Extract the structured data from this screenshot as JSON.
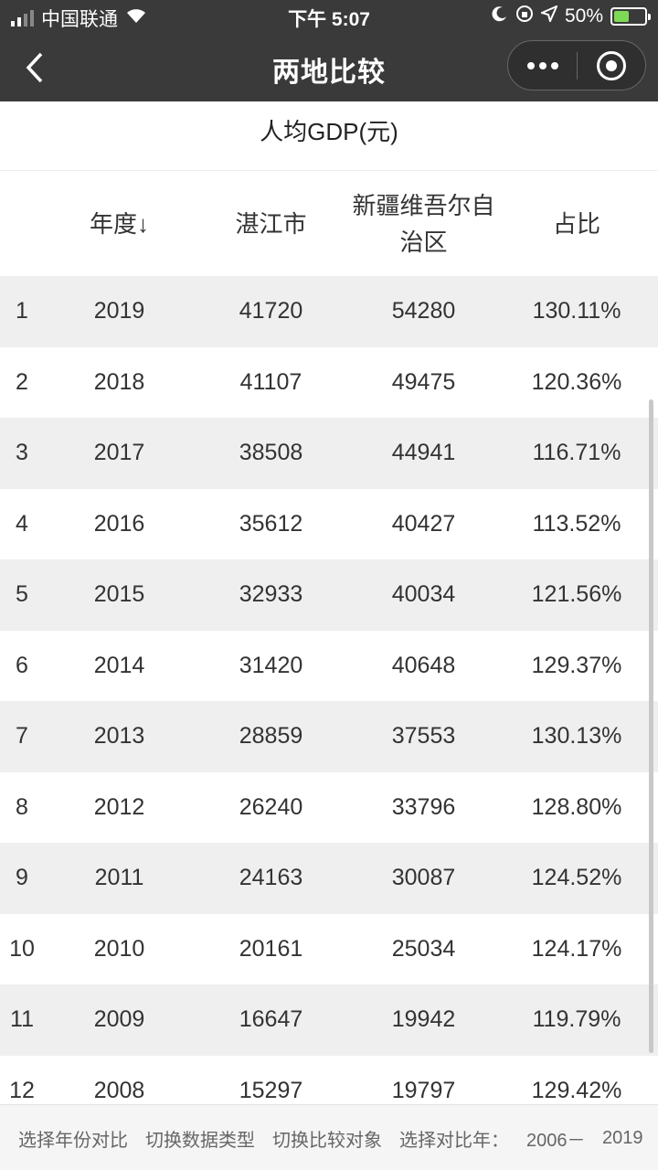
{
  "status_bar": {
    "carrier": "中国联通",
    "time": "下午 5:07",
    "battery_percent": "50%",
    "battery_level": 0.5,
    "battery_color": "#7ed957"
  },
  "nav": {
    "title": "两地比较",
    "back_icon": "chevron-left-icon",
    "more_icon": "more-dots-icon",
    "close_icon": "target-circle-icon"
  },
  "subtitle": "人均GDP(元)",
  "table": {
    "headers": {
      "year": "年度↓",
      "city_a": "湛江市",
      "city_b_line1": "新疆维吾尔自",
      "city_b_line2": "治区",
      "ratio": "占比"
    },
    "rows": [
      {
        "idx": "1",
        "year": "2019",
        "a": "41720",
        "b": "54280",
        "ratio": "130.11%"
      },
      {
        "idx": "2",
        "year": "2018",
        "a": "41107",
        "b": "49475",
        "ratio": "120.36%"
      },
      {
        "idx": "3",
        "year": "2017",
        "a": "38508",
        "b": "44941",
        "ratio": "116.71%"
      },
      {
        "idx": "4",
        "year": "2016",
        "a": "35612",
        "b": "40427",
        "ratio": "113.52%"
      },
      {
        "idx": "5",
        "year": "2015",
        "a": "32933",
        "b": "40034",
        "ratio": "121.56%"
      },
      {
        "idx": "6",
        "year": "2014",
        "a": "31420",
        "b": "40648",
        "ratio": "129.37%"
      },
      {
        "idx": "7",
        "year": "2013",
        "a": "28859",
        "b": "37553",
        "ratio": "130.13%"
      },
      {
        "idx": "8",
        "year": "2012",
        "a": "26240",
        "b": "33796",
        "ratio": "128.80%"
      },
      {
        "idx": "9",
        "year": "2011",
        "a": "24163",
        "b": "30087",
        "ratio": "124.52%"
      },
      {
        "idx": "10",
        "year": "2010",
        "a": "20161",
        "b": "25034",
        "ratio": "124.17%"
      },
      {
        "idx": "11",
        "year": "2009",
        "a": "16647",
        "b": "19942",
        "ratio": "119.79%"
      },
      {
        "idx": "12",
        "year": "2008",
        "a": "15297",
        "b": "19797",
        "ratio": "129.42%"
      }
    ]
  },
  "toolbar": {
    "select_year_compare": "选择年份对比",
    "switch_data_type": "切换数据类型",
    "switch_compare_target": "切换比较对象",
    "select_year_label": "选择对比年：",
    "year_from": "2006－",
    "year_to": "2019"
  }
}
